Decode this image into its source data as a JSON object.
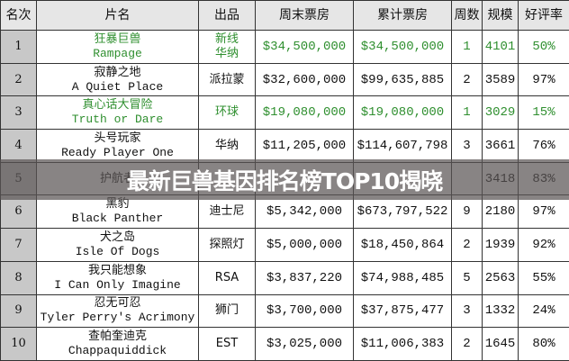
{
  "headers": [
    "名次",
    "片名",
    "出品",
    "周末票房",
    "累计票房",
    "周数",
    "规模",
    "好评率"
  ],
  "rows": [
    {
      "rank": "1",
      "cn": "狂暴巨兽",
      "en": "Rampage",
      "dist": "新线\n华纳",
      "weekend": "$34,500,000",
      "total": "$34,500,000",
      "weeks": "1",
      "theaters": "4101",
      "rating": "50%",
      "highlight": true
    },
    {
      "rank": "2",
      "cn": "寂静之地",
      "en": "A Quiet Place",
      "dist": "派拉蒙",
      "weekend": "$32,600,000",
      "total": "$99,635,885",
      "weeks": "2",
      "theaters": "3589",
      "rating": "97%",
      "highlight": false
    },
    {
      "rank": "3",
      "cn": "真心话大冒险",
      "en": "Truth or Dare",
      "dist": "环球",
      "weekend": "$19,080,000",
      "total": "$19,080,000",
      "weeks": "1",
      "theaters": "3029",
      "rating": "15%",
      "highlight": true
    },
    {
      "rank": "4",
      "cn": "头号玩家",
      "en": "Ready Player One",
      "dist": "华纳",
      "weekend": "$11,205,000",
      "total": "$114,607,798",
      "weeks": "3",
      "theaters": "3661",
      "rating": "76%",
      "highlight": false
    },
    {
      "rank": "5",
      "cn": "护航者",
      "en": "",
      "dist": "",
      "weekend": "",
      "total": "",
      "weeks": "",
      "theaters": "3418",
      "rating": "83%",
      "highlight": false
    },
    {
      "rank": "6",
      "cn": "黑豹",
      "en": "Black Panther",
      "dist": "迪士尼",
      "weekend": "$5,342,000",
      "total": "$673,797,522",
      "weeks": "9",
      "theaters": "2180",
      "rating": "97%",
      "highlight": false
    },
    {
      "rank": "7",
      "cn": "犬之岛",
      "en": "Isle Of Dogs",
      "dist": "探照灯",
      "weekend": "$5,000,000",
      "total": "$18,450,864",
      "weeks": "2",
      "theaters": "1939",
      "rating": "92%",
      "highlight": false
    },
    {
      "rank": "8",
      "cn": "我只能想象",
      "en": "I Can Only Imagine",
      "dist": "RSA",
      "weekend": "$3,837,220",
      "total": "$74,988,485",
      "weeks": "5",
      "theaters": "2563",
      "rating": "55%",
      "highlight": false
    },
    {
      "rank": "9",
      "cn": "忍无可忍",
      "en": "Tyler Perry's Acrimony",
      "dist": "狮门",
      "weekend": "$3,700,000",
      "total": "$37,875,477",
      "weeks": "3",
      "theaters": "1332",
      "rating": "24%",
      "highlight": false
    },
    {
      "rank": "10",
      "cn": "查帕奎迪克",
      "en": "Chappaquiddick",
      "dist": "EST",
      "weekend": "$3,025,000",
      "total": "$11,006,383",
      "weeks": "2",
      "theaters": "1645",
      "rating": "80%",
      "highlight": false
    }
  ],
  "overlay_title": "最新巨兽基因排名榜TOP10揭晓",
  "colors": {
    "highlight": "#2f8f2f",
    "rank_bg": "#c8c8c8",
    "header_bg": "#e6e6e6"
  }
}
